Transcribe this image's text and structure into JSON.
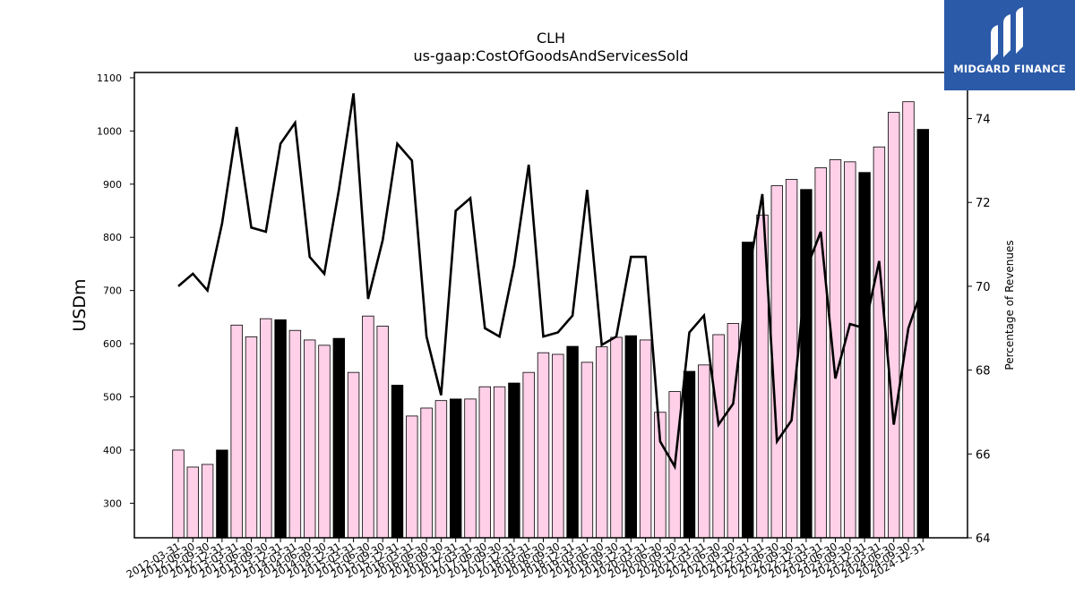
{
  "chart_data": {
    "type": "bar+line",
    "title": "CLH",
    "subtitle": "us-gaap:CostOfGoodsAndServicesSold",
    "ylabel": "USDm",
    "y2label": "Percentage of Revenues",
    "ylim": [
      235,
      1110
    ],
    "y2lim": [
      64,
      75.1
    ],
    "yticks": [
      300,
      400,
      500,
      600,
      700,
      800,
      900,
      1000,
      1100
    ],
    "y2ticks": [
      64,
      66,
      68,
      70,
      72,
      74
    ],
    "categories": [
      "2012-03-31",
      "2012-06-30",
      "2012-09-30",
      "2012-12-31",
      "2013-03-31",
      "2013-06-30",
      "2013-09-30",
      "2013-12-31",
      "2014-03-31",
      "2014-06-30",
      "2014-09-30",
      "2014-12-31",
      "2015-03-31",
      "2015-06-30",
      "2015-09-30",
      "2015-12-31",
      "2016-03-31",
      "2016-06-30",
      "2016-09-30",
      "2016-12-31",
      "2017-03-31",
      "2017-06-30",
      "2017-09-30",
      "2017-12-31",
      "2018-03-31",
      "2018-06-30",
      "2018-09-30",
      "2018-12-31",
      "2019-03-31",
      "2019-06-30",
      "2019-09-30",
      "2019-12-31",
      "2020-03-31",
      "2020-06-30",
      "2020-09-30",
      "2020-12-31",
      "2021-03-31",
      "2021-06-30",
      "2021-09-30",
      "2021-12-31",
      "2022-03-31",
      "2022-06-30",
      "2022-09-30",
      "2022-12-31",
      "2023-03-31",
      "2023-06-30",
      "2023-09-30",
      "2023-12-31",
      "2024-03-31",
      "2024-06-30",
      "2024-09-30",
      "2024-12-31"
    ],
    "bars": [
      400,
      368,
      373,
      400,
      635,
      613,
      647,
      645,
      625,
      607,
      597,
      610,
      546,
      652,
      633,
      522,
      464,
      479,
      493,
      496,
      496,
      519,
      519,
      526,
      546,
      583,
      580,
      595,
      565,
      594,
      612,
      615,
      607,
      471,
      510,
      548,
      560,
      617,
      638,
      791,
      842,
      897,
      909,
      890,
      931,
      946,
      942,
      922,
      970,
      1035,
      1055,
      1003
    ],
    "bar_highlight": [
      false,
      false,
      false,
      true,
      false,
      false,
      false,
      true,
      false,
      false,
      false,
      true,
      false,
      false,
      false,
      true,
      false,
      false,
      false,
      true,
      false,
      false,
      false,
      true,
      false,
      false,
      false,
      true,
      false,
      false,
      false,
      true,
      false,
      false,
      false,
      true,
      false,
      false,
      false,
      true,
      false,
      false,
      false,
      true,
      false,
      false,
      false,
      true,
      false,
      false,
      false,
      true
    ],
    "line_percent": [
      70.0,
      70.3,
      69.9,
      71.5,
      73.8,
      71.4,
      71.3,
      73.4,
      73.9,
      70.7,
      70.3,
      72.3,
      74.6,
      69.7,
      71.1,
      73.4,
      73.0,
      68.8,
      67.4,
      71.8,
      72.1,
      69.0,
      68.8,
      70.5,
      72.9,
      68.8,
      68.9,
      69.3,
      72.3,
      68.6,
      68.8,
      70.7,
      70.7,
      66.3,
      65.7,
      68.9,
      69.3,
      66.7,
      67.2,
      70.2,
      72.2,
      66.3,
      66.8,
      70.4,
      71.3,
      67.8,
      69.1,
      69.0,
      70.6,
      66.7,
      69.0,
      70.0
    ],
    "colors": {
      "bar_fill": "#ffd0e8",
      "bar_highlight": "#000000",
      "bar_edge": "#000000",
      "line": "#000000"
    }
  },
  "logo": {
    "text": "MIDGARD FINANCE",
    "bg": "#2b5aa8"
  }
}
